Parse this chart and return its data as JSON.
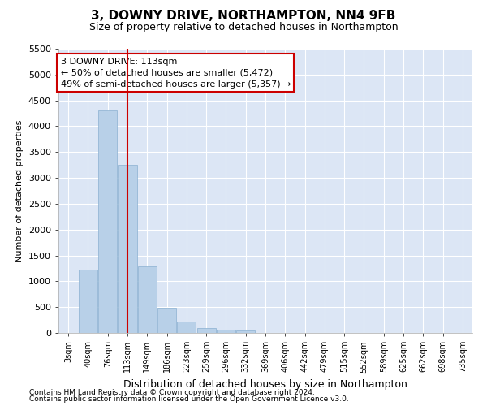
{
  "title": "3, DOWNY DRIVE, NORTHAMPTON, NN4 9FB",
  "subtitle": "Size of property relative to detached houses in Northampton",
  "xlabel": "Distribution of detached houses by size in Northampton",
  "ylabel": "Number of detached properties",
  "footnote1": "Contains HM Land Registry data © Crown copyright and database right 2024.",
  "footnote2": "Contains public sector information licensed under the Open Government Licence v3.0.",
  "annotation_line1": "3 DOWNY DRIVE: 113sqm",
  "annotation_line2": "← 50% of detached houses are smaller (5,472)",
  "annotation_line3": "49% of semi-detached houses are larger (5,357) →",
  "bar_categories": [
    "3sqm",
    "40sqm",
    "76sqm",
    "113sqm",
    "149sqm",
    "186sqm",
    "223sqm",
    "259sqm",
    "296sqm",
    "332sqm",
    "369sqm",
    "406sqm",
    "442sqm",
    "479sqm",
    "515sqm",
    "552sqm",
    "589sqm",
    "625sqm",
    "662sqm",
    "698sqm",
    "735sqm"
  ],
  "bar_values": [
    0,
    1230,
    4300,
    3250,
    1290,
    480,
    220,
    100,
    70,
    50,
    0,
    0,
    0,
    0,
    0,
    0,
    0,
    0,
    0,
    0,
    0
  ],
  "bar_color": "#b8d0e8",
  "bar_edge_color": "#8ab0d0",
  "vline_color": "#cc0000",
  "vline_index": 3,
  "ylim": [
    0,
    5500
  ],
  "yticks": [
    0,
    500,
    1000,
    1500,
    2000,
    2500,
    3000,
    3500,
    4000,
    4500,
    5000,
    5500
  ],
  "background_color": "#dce6f5",
  "fig_background_color": "#ffffff",
  "annotation_box_facecolor": "#ffffff",
  "annotation_box_edgecolor": "#cc0000",
  "grid_color": "#ffffff",
  "title_fontsize": 11,
  "subtitle_fontsize": 9,
  "ylabel_fontsize": 8,
  "xlabel_fontsize": 9,
  "tick_fontsize": 8,
  "xtick_fontsize": 7,
  "footnote_fontsize": 6.5,
  "annotation_fontsize": 8
}
